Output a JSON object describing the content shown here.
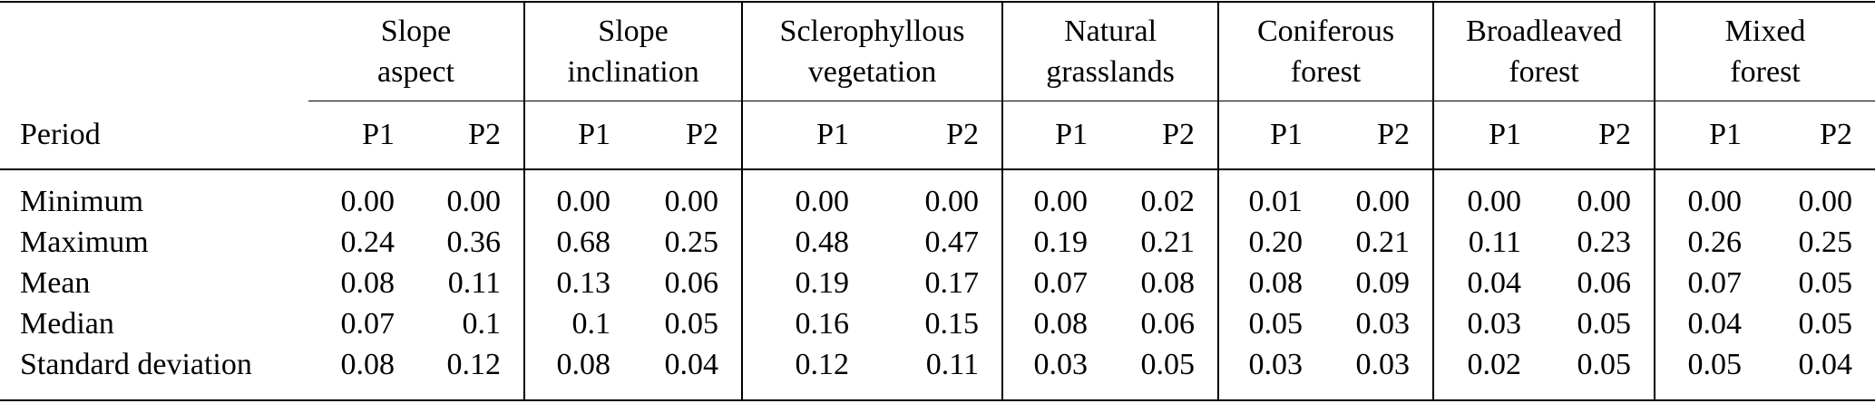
{
  "table": {
    "period_label": "Period",
    "groups": [
      {
        "name": "slope-aspect",
        "lines": [
          "Slope",
          "aspect"
        ],
        "sub": [
          "P1",
          "P2"
        ]
      },
      {
        "name": "slope-inclination",
        "lines": [
          "Slope",
          "inclination"
        ],
        "sub": [
          "P1",
          "P2"
        ]
      },
      {
        "name": "sclerophyllous-vegetation",
        "lines": [
          "Sclerophyllous",
          "vegetation"
        ],
        "sub": [
          "P1",
          "P2"
        ]
      },
      {
        "name": "natural-grasslands",
        "lines": [
          "Natural",
          "grasslands"
        ],
        "sub": [
          "P1",
          "P2"
        ]
      },
      {
        "name": "coniferous-forest",
        "lines": [
          "Coniferous",
          "forest"
        ],
        "sub": [
          "P1",
          "P2"
        ]
      },
      {
        "name": "broadleaved-forest",
        "lines": [
          "Broadleaved",
          "forest"
        ],
        "sub": [
          "P1",
          "P2"
        ]
      },
      {
        "name": "mixed-forest",
        "lines": [
          "Mixed",
          "forest"
        ],
        "sub": [
          "P1",
          "P2"
        ]
      }
    ],
    "rows": [
      {
        "label": "Minimum",
        "values": [
          "0.00",
          "0.00",
          "0.00",
          "0.00",
          "0.00",
          "0.00",
          "0.00",
          "0.02",
          "0.01",
          "0.00",
          "0.00",
          "0.00",
          "0.00",
          "0.00"
        ]
      },
      {
        "label": "Maximum",
        "values": [
          "0.24",
          "0.36",
          "0.68",
          "0.25",
          "0.48",
          "0.47",
          "0.19",
          "0.21",
          "0.20",
          "0.21",
          "0.11",
          "0.23",
          "0.26",
          "0.25"
        ]
      },
      {
        "label": "Mean",
        "values": [
          "0.08",
          "0.11",
          "0.13",
          "0.06",
          "0.19",
          "0.17",
          "0.07",
          "0.08",
          "0.08",
          "0.09",
          "0.04",
          "0.06",
          "0.07",
          "0.05"
        ]
      },
      {
        "label": "Median",
        "values": [
          "0.07",
          "0.1",
          "0.1",
          "0.05",
          "0.16",
          "0.15",
          "0.08",
          "0.06",
          "0.05",
          "0.03",
          "0.03",
          "0.05",
          "0.04",
          "0.05"
        ]
      },
      {
        "label": "Standard deviation",
        "values": [
          "0.08",
          "0.12",
          "0.08",
          "0.04",
          "0.12",
          "0.11",
          "0.03",
          "0.05",
          "0.03",
          "0.03",
          "0.02",
          "0.05",
          "0.05",
          "0.04"
        ]
      }
    ]
  },
  "colors": {
    "background": "#ffffff",
    "text": "#000000",
    "rule": "#000000"
  }
}
